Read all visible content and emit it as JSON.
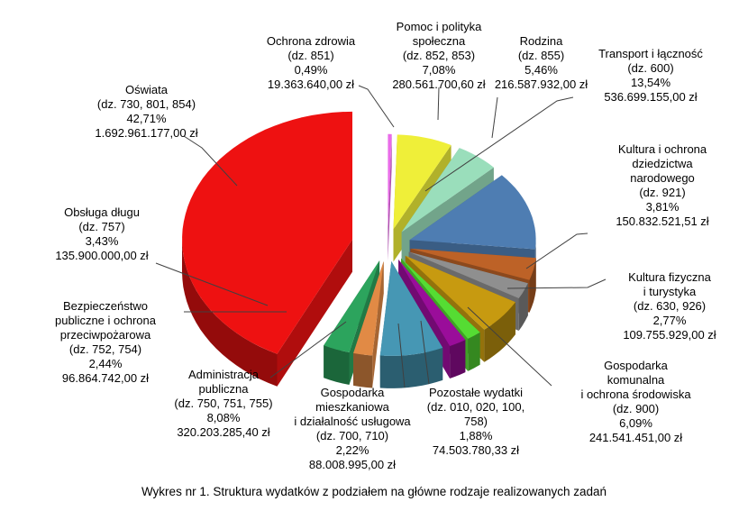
{
  "caption": "Wykres nr 1. Struktura wydatków z podziałem na główne rodzaje realizowanych zadań",
  "chart_data": {
    "type": "pie",
    "style": "3d-exploded",
    "unit": "zł",
    "legend_position": "none",
    "clockwise_from_top": true,
    "slices": [
      {
        "name": "Ochrona zdrowia",
        "dz": "(dz. 851)",
        "percent": 0.49,
        "percent_label": "0,49%",
        "amount_label": "19.363.640,00 zł",
        "color": "#E96CE9",
        "label_lines": [
          "Ochrona zdrowia",
          "(dz. 851)",
          "0,49%",
          "19.363.640,00 zł"
        ]
      },
      {
        "name": "Pomoc i polityka społeczna",
        "dz": "(dz. 852, 853)",
        "percent": 7.08,
        "percent_label": "7,08%",
        "amount_label": "280.561.700,60 zł",
        "color": "#EFEF39",
        "label_lines": [
          "Pomoc i polityka",
          "społeczna",
          "(dz. 852, 853)",
          "7,08%",
          "280.561.700,60 zł"
        ]
      },
      {
        "name": "Rodzina",
        "dz": "(dz. 855)",
        "percent": 5.46,
        "percent_label": "5,46%",
        "amount_label": "216.587.932,00 zł",
        "color": "#9ADEBB",
        "label_lines": [
          "Rodzina",
          "(dz. 855)",
          "5,46%",
          "216.587.932,00 zł"
        ]
      },
      {
        "name": "Transport i łączność",
        "dz": "(dz. 600)",
        "percent": 13.54,
        "percent_label": "13,54%",
        "amount_label": "536.699.155,00 zł",
        "color": "#4E7DB2",
        "label_lines": [
          "Transport i łączność",
          "(dz. 600)",
          "13,54%",
          "536.699.155,00 zł"
        ]
      },
      {
        "name": "Kultura i ochrona dziedzictwa narodowego",
        "dz": "(dz. 921)",
        "percent": 3.81,
        "percent_label": "3,81%",
        "amount_label": "150.832.521,51 zł",
        "color": "#BD6227",
        "label_lines": [
          "Kultura i ochrona",
          "dziedzictwa",
          "narodowego",
          "(dz. 921)",
          "3,81%",
          "150.832.521,51 zł"
        ]
      },
      {
        "name": "Kultura fizyczna i turystyka",
        "dz": "(dz. 630, 926)",
        "percent": 2.77,
        "percent_label": "2,77%",
        "amount_label": "109.755.929,00 zł",
        "color": "#8F8F8F",
        "label_lines": [
          "Kultura fizyczna",
          "i turystyka",
          "(dz. 630, 926)",
          "2,77%",
          "109.755.929,00 zł"
        ]
      },
      {
        "name": "Gospodarka komunalna i ochrona środowiska",
        "dz": "(dz. 900)",
        "percent": 6.09,
        "percent_label": "6,09%",
        "amount_label": "241.541.451,00 zł",
        "color": "#C79A10",
        "label_lines": [
          "Gospodarka",
          "komunalna",
          "i ochrona środowiska",
          "(dz. 900)",
          "6,09%",
          "241.541.451,00 zł"
        ]
      },
      {
        "name": "Pozostałe wydatki",
        "dz": "(dz. 010, 020, 100, 758)",
        "percent": 1.88,
        "percent_label": "1,88%",
        "amount_label": "74.503.780,33 zł",
        "color": "#55DC33",
        "label_lines": [
          "Pozostałe wydatki",
          "(dz. 010, 020, 100,",
          "758)",
          "1,88%",
          "74.503.780,33 zł"
        ]
      },
      {
        "name": "Gospodarka mieszkaniowa i działalność usługowa",
        "dz": "(dz. 700, 710)",
        "percent": 2.22,
        "percent_label": "2,22%",
        "amount_label": "88.008.995,00 zł",
        "color": "#9A0D9A",
        "label_lines": [
          "Gospodarka",
          "mieszkaniowa",
          "i działalność usługowa",
          "(dz. 700, 710)",
          "2,22%",
          "88.008.995,00 zł"
        ]
      },
      {
        "name": "Administracja publiczna",
        "dz": "(dz. 750, 751, 755)",
        "percent": 8.08,
        "percent_label": "8,08%",
        "amount_label": "320.203.285,40 zł",
        "color": "#4697B4",
        "label_lines": [
          "Administracja",
          "publiczna",
          "(dz. 750, 751, 755)",
          "8,08%",
          "320.203.285,40 zł"
        ]
      },
      {
        "name": "Bezpieczeństwo publiczne i ochrona przeciwpożarowa",
        "dz": "(dz. 752, 754)",
        "percent": 2.44,
        "percent_label": "2,44%",
        "amount_label": "96.864.742,00 zł",
        "color": "#E18A45",
        "label_lines": [
          "Bezpieczeństwo",
          "publiczne i ochrona",
          "przeciwpożarowa",
          "(dz. 752, 754)",
          "2,44%",
          "96.864.742,00 zł"
        ]
      },
      {
        "name": "Obsługa długu",
        "dz": "(dz. 757)",
        "percent": 3.43,
        "percent_label": "3,43%",
        "amount_label": "135.900.000,00 zł",
        "color": "#2CA45D",
        "label_lines": [
          "Obsługa długu",
          "(dz. 757)",
          "3,43%",
          "135.900.000,00 zł"
        ]
      },
      {
        "name": "Oświata",
        "dz": "(dz. 730, 801, 854)",
        "percent": 42.71,
        "percent_label": "42,71%",
        "amount_label": "1.692.961.177,00 zł",
        "color": "#EE1111",
        "label_lines": [
          "Oświata",
          "(dz. 730, 801, 854)",
          "42,71%",
          "1.692.961.177,00 zł"
        ]
      }
    ],
    "leader_line_color": "#404040"
  }
}
